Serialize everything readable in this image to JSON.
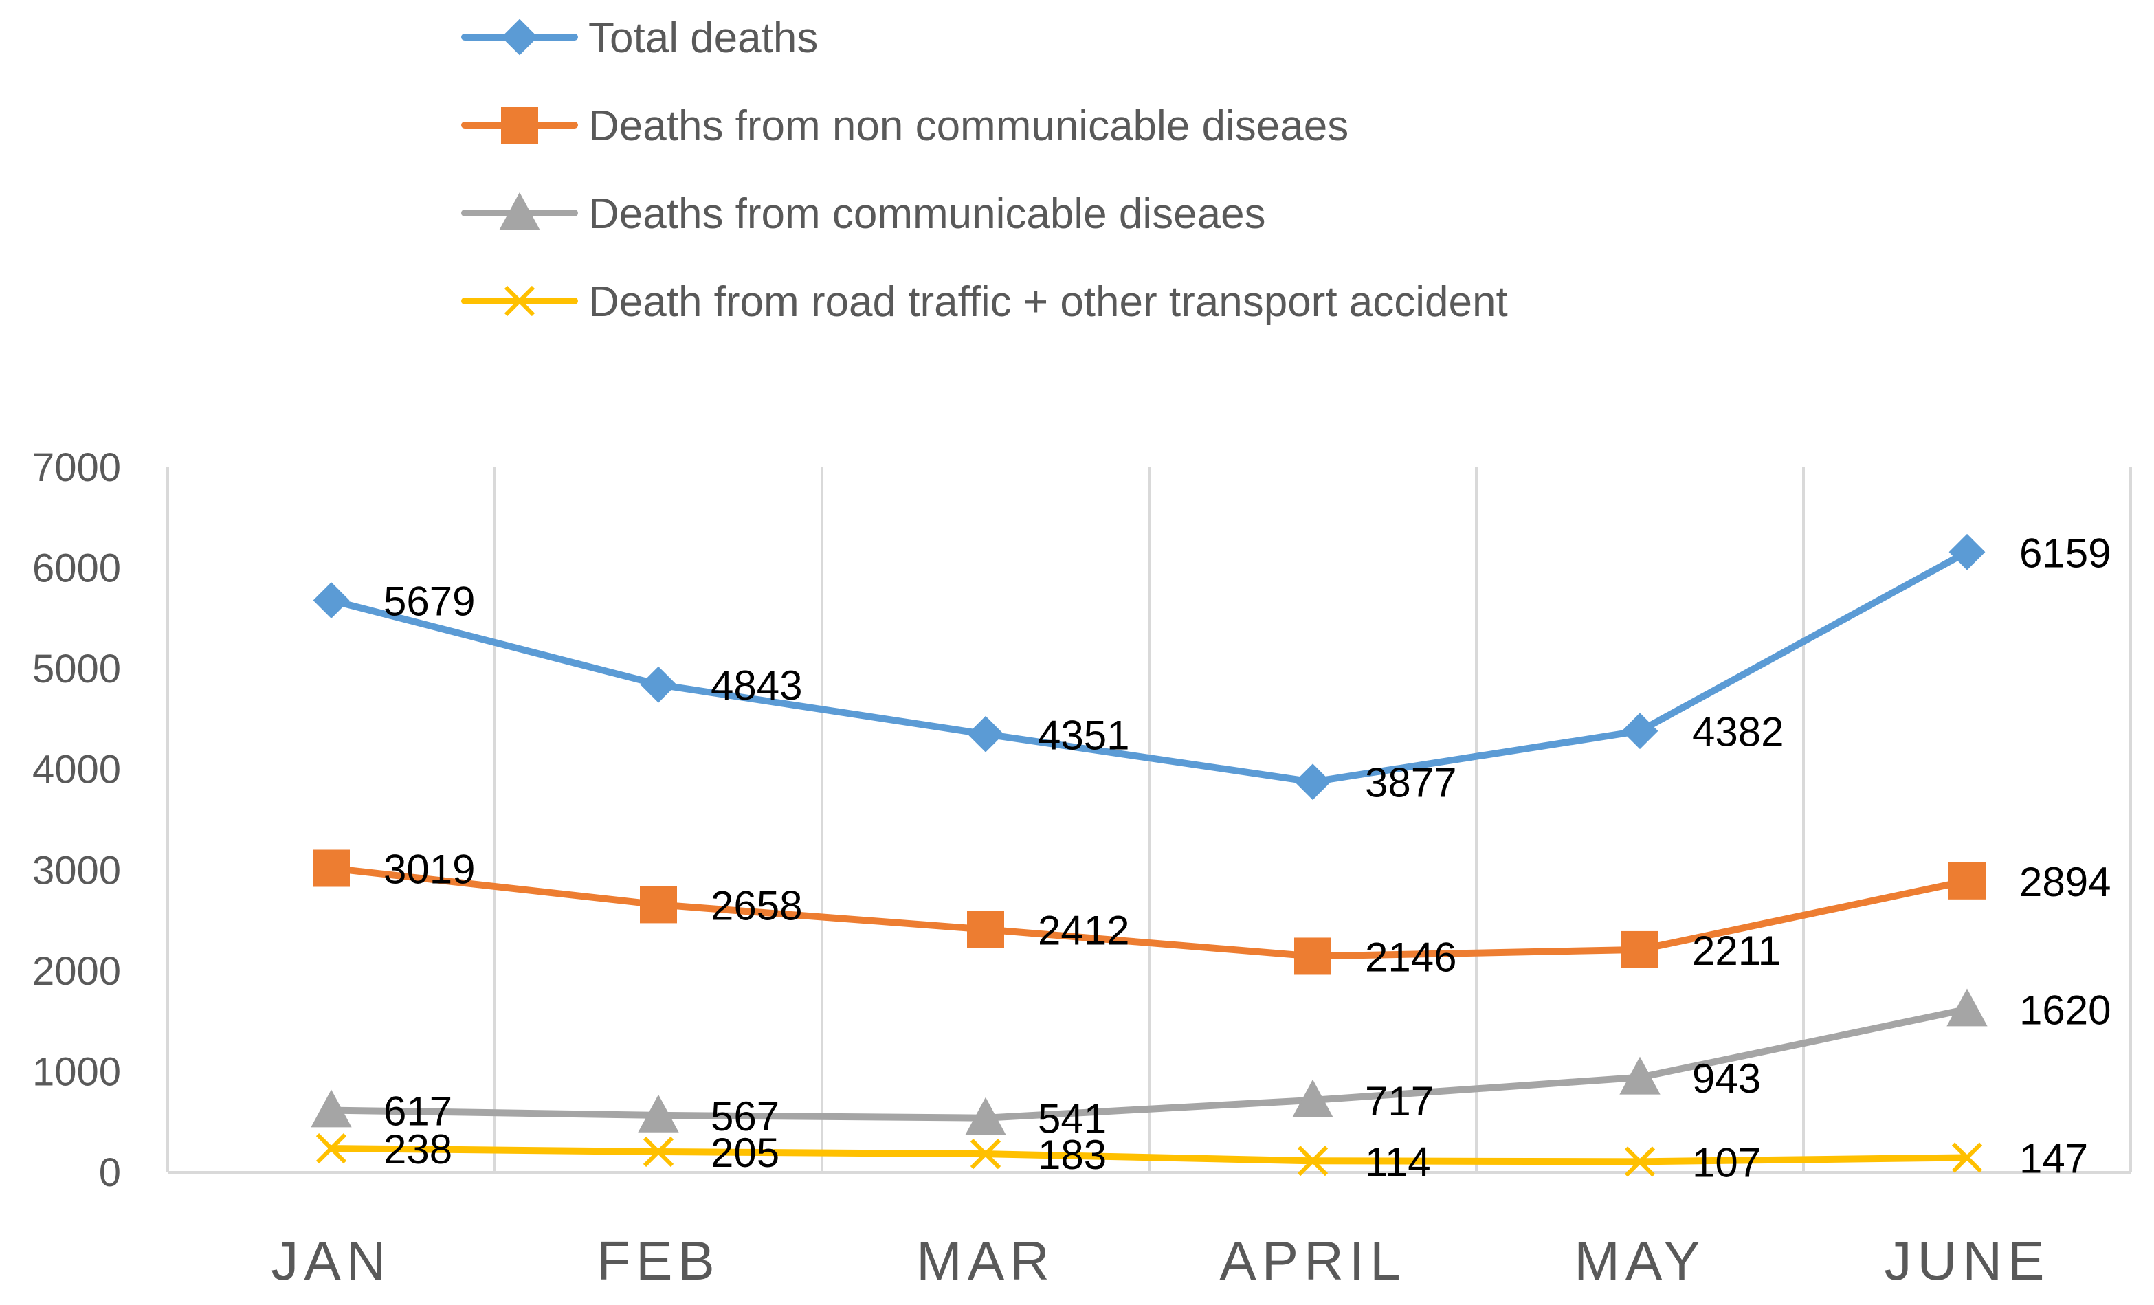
{
  "chart_data": {
    "type": "line",
    "title": "",
    "xlabel": "",
    "ylabel": "",
    "categories": [
      "JAN",
      "FEB",
      "MAR",
      "APRIL",
      "MAY",
      "JUNE"
    ],
    "ylim": [
      0,
      7000
    ],
    "yticks": [
      0,
      1000,
      2000,
      3000,
      4000,
      5000,
      6000,
      7000
    ],
    "grid": "vertical",
    "legend_position": "top",
    "series": [
      {
        "name": "Total deaths",
        "color": "#5B9BD5",
        "marker": "diamond",
        "values": [
          5679,
          4843,
          4351,
          3877,
          4382,
          6159
        ]
      },
      {
        "name": "Deaths from non communicable diseaes",
        "color": "#ED7D31",
        "marker": "square",
        "values": [
          3019,
          2658,
          2412,
          2146,
          2211,
          2894
        ]
      },
      {
        "name": "Deaths from  communicable diseaes",
        "color": "#A5A5A5",
        "marker": "triangle",
        "values": [
          617,
          567,
          541,
          717,
          943,
          1620
        ]
      },
      {
        "name": "Death from road traffic + other transport accident",
        "color": "#FFC000",
        "marker": "x",
        "values": [
          238,
          205,
          183,
          114,
          107,
          147
        ]
      }
    ]
  }
}
